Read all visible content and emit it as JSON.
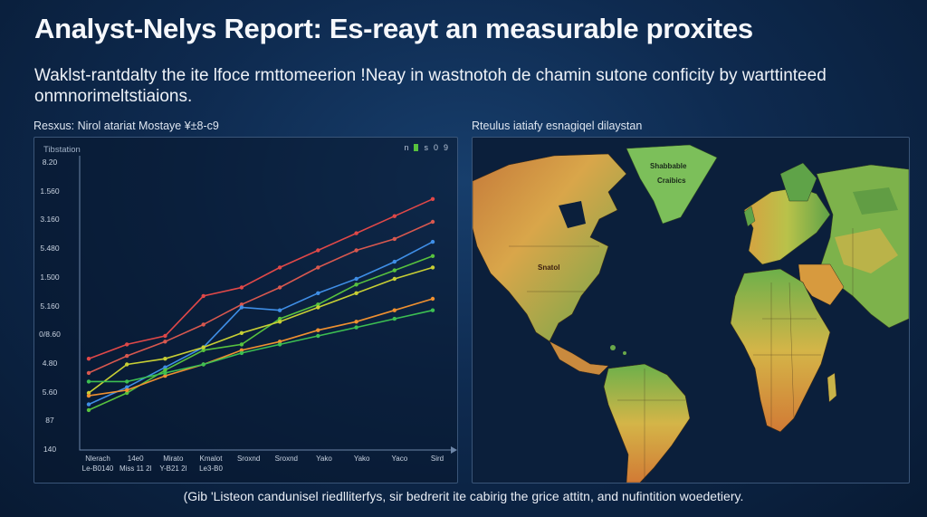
{
  "header": {
    "title": "Analyst-Nelys Report: Es-reayt an measurable proxites",
    "subtitle": "Waklst-rantdalty the ite lfoce rmttomeerion !Neay in wastnotoh de chamin sutone conficity by warttinteed onmnorimeltstiaions."
  },
  "left_panel": {
    "label": "Resxus: Nirol atariat Mostaye ¥±8-c9"
  },
  "right_panel": {
    "label": "Rteulus iatiafy esnagiqel dilaystan"
  },
  "footnote": "(Gib 'Listeon candunisel riedlliterfys, sir bedrerit ite cabirig the grice attitn, and nufintition woedetiery.",
  "colors": {
    "red": "#e04848",
    "red2": "#d8584f",
    "blue": "#3f8ee6",
    "green": "#58c23e",
    "yellow": "#c8cf34",
    "orange": "#f09030",
    "green2": "#3cbf52"
  },
  "map": {
    "labels": [
      "Shabbable",
      "Craibics",
      "Snatol"
    ]
  },
  "chart_data": {
    "type": "line",
    "title": "Tibstation",
    "legend": [
      "n",
      "s",
      "0",
      "9"
    ],
    "y_ticks": [
      "8.20",
      "1.560",
      "3.160",
      "5.480",
      "1.500",
      "5.160",
      "0/8.60",
      "4.80",
      "5.60",
      "87",
      "140"
    ],
    "x_tick_labels": [
      [
        "Nlerach",
        "Le-B0140"
      ],
      [
        "14e0",
        "Miss 11 2l"
      ],
      [
        "Mirato",
        "Y-B21 2l"
      ],
      [
        "Kmalot",
        "Le3-B0"
      ],
      [
        "Sroxnd",
        ""
      ],
      [
        "Sroxnd",
        ""
      ],
      [
        "Yako",
        ""
      ],
      [
        "Yako",
        ""
      ],
      [
        "Yaco",
        ""
      ],
      [
        "Sird",
        ""
      ]
    ],
    "x": [
      0,
      1,
      2,
      3,
      4,
      5,
      6,
      7,
      8,
      9
    ],
    "ylim": [
      0,
      100
    ],
    "series": [
      {
        "name": "red",
        "color_key": "red",
        "values": [
          32,
          37,
          40,
          54,
          57,
          64,
          70,
          76,
          82,
          88
        ]
      },
      {
        "name": "red2",
        "color_key": "red2",
        "values": [
          27,
          33,
          38,
          44,
          51,
          57,
          64,
          70,
          74,
          80
        ]
      },
      {
        "name": "blue",
        "color_key": "blue",
        "values": [
          16,
          22,
          29,
          36,
          50,
          49,
          55,
          60,
          66,
          73
        ]
      },
      {
        "name": "green",
        "color_key": "green",
        "values": [
          14,
          20,
          28,
          35,
          37,
          46,
          51,
          58,
          63,
          68
        ]
      },
      {
        "name": "yellow",
        "color_key": "yellow",
        "values": [
          20,
          30,
          32,
          36,
          41,
          45,
          50,
          55,
          60,
          64
        ]
      },
      {
        "name": "orange",
        "color_key": "orange",
        "values": [
          19,
          21,
          26,
          30,
          35,
          38,
          42,
          45,
          49,
          53
        ]
      },
      {
        "name": "green2",
        "color_key": "green2",
        "values": [
          24,
          24,
          27,
          30,
          34,
          37,
          40,
          43,
          46,
          49
        ]
      }
    ]
  }
}
